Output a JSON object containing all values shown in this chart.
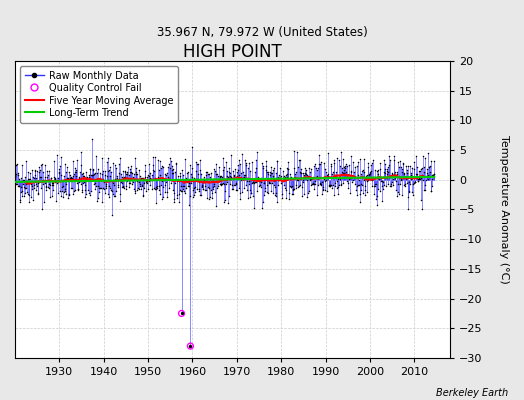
{
  "title": "HIGH POINT",
  "subtitle": "35.967 N, 79.972 W (United States)",
  "ylabel": "Temperature Anomaly (°C)",
  "credit": "Berkeley Earth",
  "ylim": [
    -30,
    20
  ],
  "yticks": [
    -30,
    -25,
    -20,
    -15,
    -10,
    -5,
    0,
    5,
    10,
    15,
    20
  ],
  "xlim": [
    1920,
    2018
  ],
  "xticks": [
    1930,
    1940,
    1950,
    1960,
    1970,
    1980,
    1990,
    2000,
    2010
  ],
  "bg_color": "#e8e8e8",
  "plot_bg_color": "#ffffff",
  "grid_color": "#cccccc",
  "raw_color": "#3333ff",
  "raw_dot_color": "#000000",
  "ma_color": "#ff0000",
  "trend_color": "#00cc00",
  "qc_color": "#ff00ff",
  "seed": 42,
  "start_year": 1920.0,
  "end_year": 2014.5,
  "noise_std": 1.8,
  "ma_window": 60,
  "outlier_year1": 1957.5,
  "outlier_val1": -22.5,
  "outlier_year2": 1959.5,
  "outlier_val2": -28.0
}
